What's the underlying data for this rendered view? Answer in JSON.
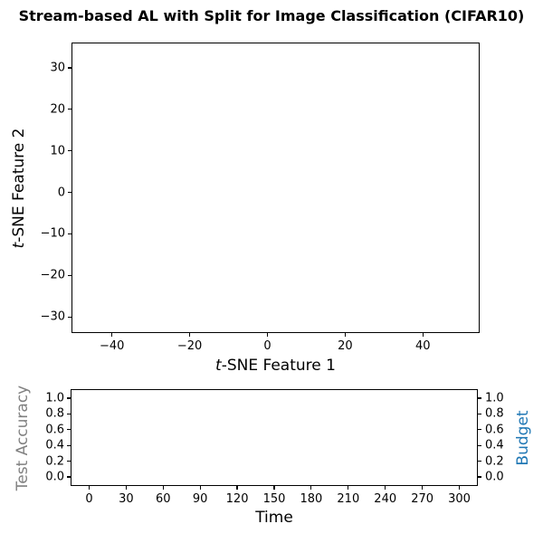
{
  "figure_title": "Stream-based AL with Split for Image Classification (CIFAR10)",
  "colors": {
    "title": "#000000",
    "spine": "#000000",
    "tick_label": "#000000",
    "test_accuracy_label": "#808080",
    "budget_label": "#1f77b4",
    "background": "#ffffff"
  },
  "chart_data": [
    {
      "id": "tsne-plot",
      "type": "scatter",
      "title": "",
      "xlabel": "t-SNE Feature 1",
      "ylabel": "t-SNE Feature 2",
      "xlabel_italic_first_char": true,
      "ylabel_italic_first_char": true,
      "xlim": [
        -50.4,
        54.6
      ],
      "ylim": [
        -33.9,
        36.1
      ],
      "xtick_values": [
        -40,
        -20,
        0,
        20,
        40
      ],
      "xtick_labels": [
        "−40",
        "−20",
        "0",
        "20",
        "40"
      ],
      "ytick_values": [
        -30,
        -20,
        -10,
        0,
        10,
        20,
        30
      ],
      "ytick_labels": [
        "−30",
        "−20",
        "−10",
        "0",
        "10",
        "20",
        "30"
      ],
      "points": [],
      "grid": false,
      "legend": null,
      "note": "axes are empty (no scatter points plotted)"
    },
    {
      "id": "accuracy-budget-plot",
      "type": "line",
      "title": "",
      "xlabel": "Time",
      "ylabel_left": "Test Accuracy",
      "ylabel_right": "Budget",
      "ylabel_left_color": "#808080",
      "ylabel_right_color": "#1f77b4",
      "xlim": [
        -15,
        315
      ],
      "ylim_left": [
        -0.115,
        1.115
      ],
      "ylim_right": [
        -0.115,
        1.115
      ],
      "xtick_values": [
        0,
        30,
        60,
        90,
        120,
        150,
        180,
        210,
        240,
        270,
        300
      ],
      "xtick_labels": [
        "0",
        "30",
        "60",
        "90",
        "120",
        "150",
        "180",
        "210",
        "240",
        "270",
        "300"
      ],
      "ytick_values_left": [
        0.0,
        0.2,
        0.4,
        0.6,
        0.8,
        1.0
      ],
      "ytick_labels_left": [
        "0.0",
        "0.2",
        "0.4",
        "0.6",
        "0.8",
        "1.0"
      ],
      "ytick_values_right": [
        0.0,
        0.2,
        0.4,
        0.6,
        0.8,
        1.0
      ],
      "ytick_labels_right": [
        "0.0",
        "0.2",
        "0.4",
        "0.6",
        "0.8",
        "1.0"
      ],
      "series": [],
      "grid": false,
      "legend": null,
      "note": "axes are empty (no series plotted)"
    }
  ]
}
